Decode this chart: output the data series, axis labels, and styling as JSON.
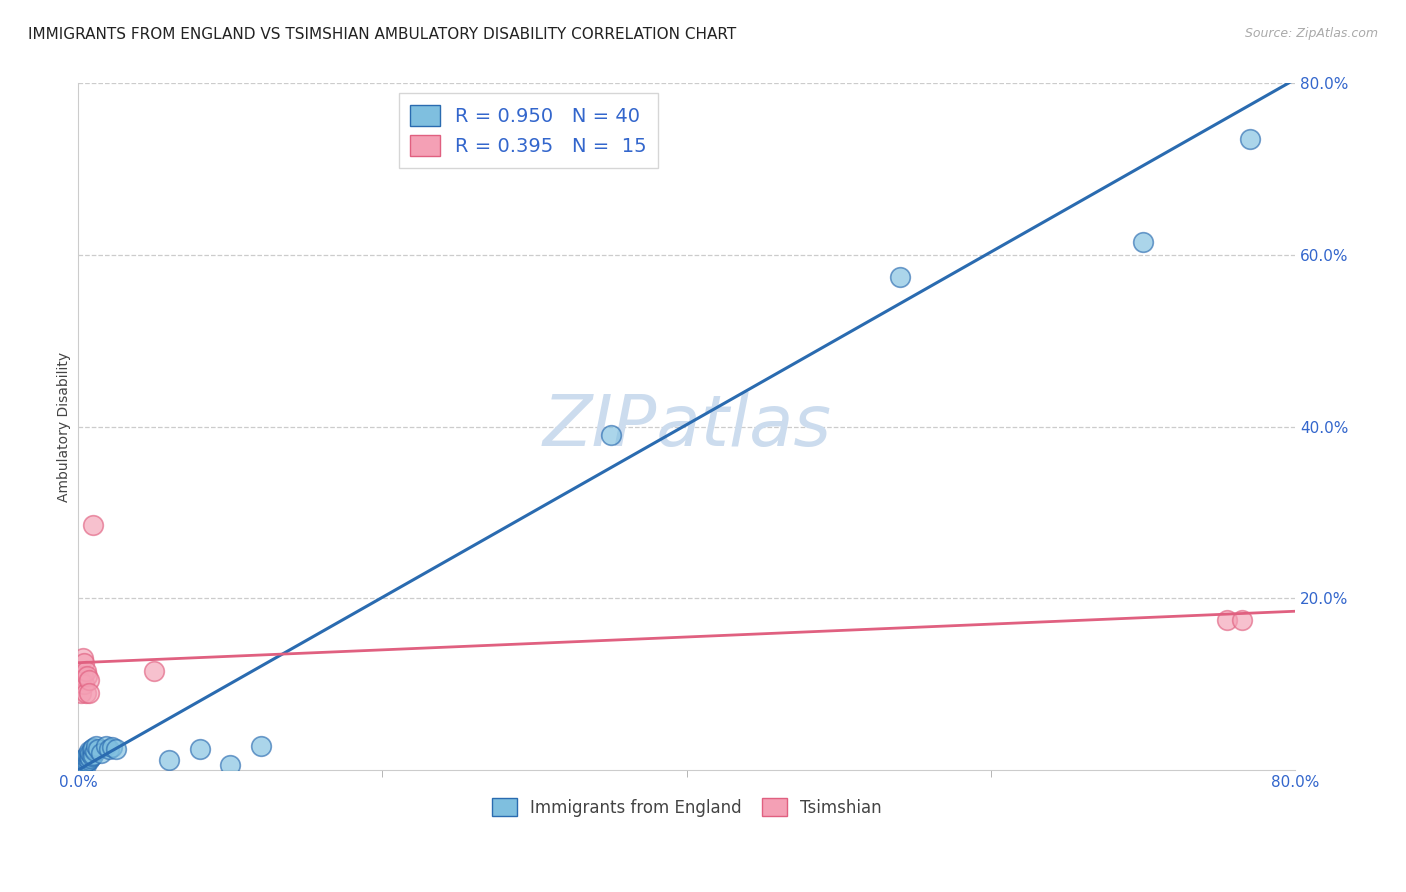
{
  "title": "IMMIGRANTS FROM ENGLAND VS TSIMSHIAN AMBULATORY DISABILITY CORRELATION CHART",
  "source": "Source: ZipAtlas.com",
  "ylabel": "Ambulatory Disability",
  "xlim": [
    0.0,
    0.8
  ],
  "ylim": [
    0.0,
    0.8
  ],
  "yticks": [
    0.2,
    0.4,
    0.6,
    0.8
  ],
  "ytick_labels": [
    "20.0%",
    "40.0%",
    "60.0%",
    "80.0%"
  ],
  "xtick_ends": [
    "0.0%",
    "80.0%"
  ],
  "blue_color": "#7fbfdf",
  "pink_color": "#f4a0b5",
  "blue_line_color": "#2a6bb0",
  "pink_line_color": "#e06080",
  "watermark": "ZIPatlas",
  "blue_scatter": [
    [
      0.001,
      0.003
    ],
    [
      0.002,
      0.004
    ],
    [
      0.002,
      0.006
    ],
    [
      0.003,
      0.005
    ],
    [
      0.003,
      0.008
    ],
    [
      0.003,
      0.012
    ],
    [
      0.004,
      0.007
    ],
    [
      0.004,
      0.01
    ],
    [
      0.004,
      0.013
    ],
    [
      0.005,
      0.006
    ],
    [
      0.005,
      0.009
    ],
    [
      0.005,
      0.015
    ],
    [
      0.006,
      0.01
    ],
    [
      0.006,
      0.014
    ],
    [
      0.006,
      0.018
    ],
    [
      0.007,
      0.012
    ],
    [
      0.007,
      0.016
    ],
    [
      0.007,
      0.022
    ],
    [
      0.008,
      0.014
    ],
    [
      0.008,
      0.02
    ],
    [
      0.009,
      0.016
    ],
    [
      0.009,
      0.024
    ],
    [
      0.01,
      0.018
    ],
    [
      0.01,
      0.026
    ],
    [
      0.011,
      0.022
    ],
    [
      0.012,
      0.028
    ],
    [
      0.013,
      0.024
    ],
    [
      0.015,
      0.02
    ],
    [
      0.018,
      0.028
    ],
    [
      0.02,
      0.024
    ],
    [
      0.022,
      0.027
    ],
    [
      0.025,
      0.025
    ],
    [
      0.06,
      0.012
    ],
    [
      0.08,
      0.025
    ],
    [
      0.1,
      0.006
    ],
    [
      0.12,
      0.028
    ],
    [
      0.35,
      0.39
    ],
    [
      0.54,
      0.575
    ],
    [
      0.7,
      0.615
    ],
    [
      0.77,
      0.735
    ]
  ],
  "pink_scatter": [
    [
      0.001,
      0.105
    ],
    [
      0.002,
      0.09
    ],
    [
      0.003,
      0.13
    ],
    [
      0.003,
      0.11
    ],
    [
      0.004,
      0.1
    ],
    [
      0.004,
      0.125
    ],
    [
      0.005,
      0.09
    ],
    [
      0.005,
      0.115
    ],
    [
      0.006,
      0.11
    ],
    [
      0.007,
      0.105
    ],
    [
      0.007,
      0.09
    ],
    [
      0.01,
      0.285
    ],
    [
      0.05,
      0.115
    ],
    [
      0.755,
      0.175
    ],
    [
      0.765,
      0.175
    ]
  ],
  "blue_line_x": [
    0.0,
    0.8
  ],
  "blue_line_y": [
    0.0,
    0.805
  ],
  "pink_line_x": [
    0.0,
    0.8
  ],
  "pink_line_y": [
    0.125,
    0.185
  ],
  "legend_blue_label": "R = 0.950   N = 40",
  "legend_pink_label": "R = 0.395   N =  15",
  "legend_blue_label2": "Immigrants from England",
  "legend_pink_label2": "Tsimshian",
  "background_color": "#ffffff",
  "grid_color": "#cccccc",
  "title_fontsize": 11,
  "axis_label_fontsize": 10,
  "tick_fontsize": 11,
  "watermark_color": "#ccdcee",
  "watermark_fontsize": 52
}
